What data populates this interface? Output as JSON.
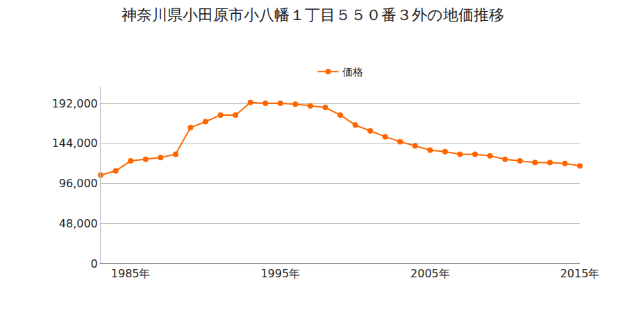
{
  "chart_data": {
    "type": "line",
    "title": "神奈川県小田原市小八幡１丁目５５０番３外の地価推移",
    "x": [
      1983,
      1984,
      1985,
      1986,
      1987,
      1988,
      1989,
      1990,
      1991,
      1992,
      1993,
      1994,
      1995,
      1996,
      1997,
      1998,
      1999,
      2000,
      2001,
      2002,
      2003,
      2004,
      2005,
      2006,
      2007,
      2008,
      2009,
      2010,
      2011,
      2012,
      2013,
      2014,
      2015
    ],
    "series": [
      {
        "name": "価格",
        "color": "#ff6600",
        "marker": "circle",
        "values": [
          106000,
          111000,
          123000,
          125000,
          127000,
          131000,
          163000,
          170000,
          178000,
          178000,
          193000,
          192000,
          192000,
          191000,
          189000,
          187000,
          178000,
          166000,
          159000,
          152000,
          146000,
          141000,
          136000,
          134000,
          131000,
          131000,
          129000,
          125000,
          123000,
          121000,
          121000,
          120000,
          117000
        ]
      }
    ],
    "xlim": [
      1983,
      2015
    ],
    "xticks": [
      {
        "value": 1985,
        "label": "1985年"
      },
      {
        "value": 1995,
        "label": "1995年"
      },
      {
        "value": 2005,
        "label": "2005年"
      },
      {
        "value": 2015,
        "label": "2015年"
      }
    ],
    "ylim": [
      0,
      212000
    ],
    "yticks": [
      0,
      {
        "value": 48000,
        "label": "48,000"
      },
      {
        "value": 96000,
        "label": "96,000"
      },
      {
        "value": 144000,
        "label": "144,000"
      },
      {
        "value": 192000,
        "label": "192,000"
      }
    ],
    "grid": true,
    "legend": "top"
  }
}
